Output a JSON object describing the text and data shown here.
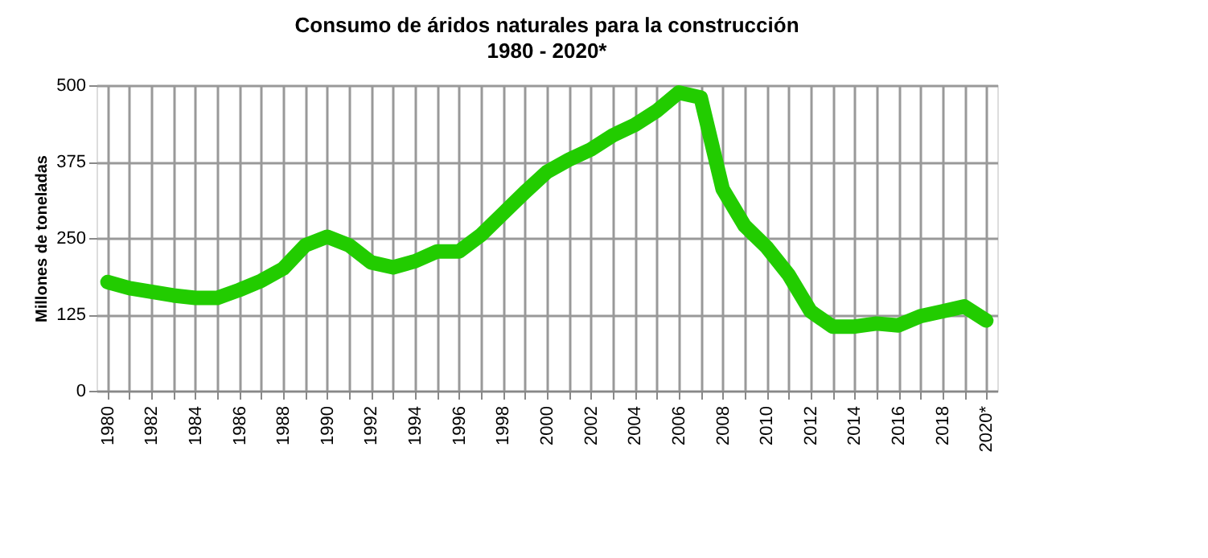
{
  "chart_data": {
    "type": "line",
    "title": "Consumo de áridos naturales para la construcción",
    "subtitle": "1980 - 2020*",
    "ylabel": "Millones de toneladas",
    "categories": [
      "1980",
      null,
      "1982",
      null,
      "1984",
      null,
      "1986",
      null,
      "1988",
      null,
      "1990",
      null,
      "1992",
      null,
      "1994",
      null,
      "1996",
      null,
      "1998",
      null,
      "2000",
      null,
      "2002",
      null,
      "2004",
      null,
      "2006",
      null,
      "2008",
      null,
      "2010",
      null,
      "2012",
      null,
      "2014",
      null,
      "2016",
      null,
      "2018",
      null,
      "2020*"
    ],
    "series": [
      {
        "color": "#22cc00",
        "values": [
          178,
          168,
          162,
          156,
          152,
          152,
          165,
          180,
          200,
          238,
          252,
          238,
          210,
          202,
          212,
          228,
          228,
          255,
          290,
          325,
          358,
          378,
          395,
          418,
          435,
          458,
          488,
          480,
          330,
          270,
          235,
          190,
          130,
          105,
          105,
          110,
          107,
          122,
          130,
          138,
          115
        ]
      }
    ],
    "ylim": [
      0,
      500
    ],
    "yticks": [
      0,
      125,
      250,
      375,
      500
    ],
    "grid": true,
    "line_style": "solid"
  }
}
